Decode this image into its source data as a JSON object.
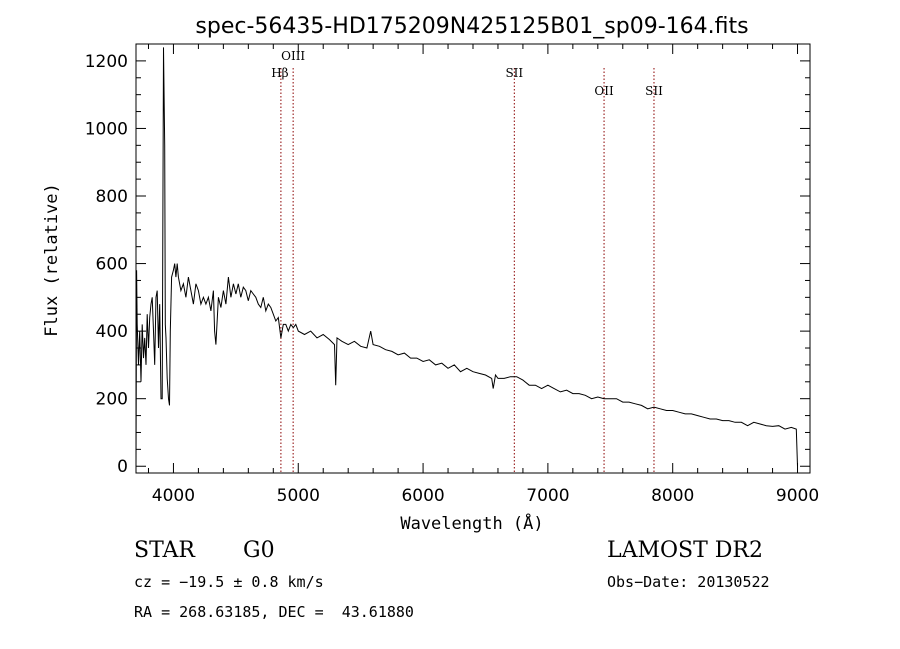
{
  "chart_data": {
    "type": "line",
    "title": "spec-56435-HD175209N425125B01_sp09-164.fits",
    "xlabel": "Wavelength (Å)",
    "ylabel": "Flux (relative)",
    "xlim": [
      3700,
      9100
    ],
    "ylim": [
      -20,
      1250
    ],
    "x_ticks": [
      4000,
      5000,
      6000,
      7000,
      8000,
      9000
    ],
    "y_ticks": [
      0,
      200,
      400,
      600,
      800,
      1000,
      1200
    ],
    "grid": false,
    "line_color": "#000000",
    "marker_color": "#8b0000",
    "lines": [
      {
        "label": "Hβ",
        "wavelength": 4861
      },
      {
        "label": "OIII",
        "wavelength": 4959
      },
      {
        "label": "SII",
        "wavelength": 6731
      },
      {
        "label": "OII",
        "wavelength": 7450
      },
      {
        "label": "SII",
        "wavelength": 7850
      }
    ],
    "series": [
      {
        "x": [
          3700,
          3705,
          3710,
          3720,
          3730,
          3740,
          3750,
          3760,
          3770,
          3780,
          3790,
          3800,
          3810,
          3820,
          3830,
          3840,
          3850,
          3860,
          3870,
          3880,
          3890,
          3900,
          3910,
          3920,
          3930,
          3935,
          3940,
          3950,
          3960,
          3968,
          3975,
          3985,
          4000,
          4010,
          4020,
          4030,
          4040,
          4060,
          4080,
          4100,
          4120,
          4140,
          4160,
          4180,
          4200,
          4220,
          4240,
          4260,
          4280,
          4300,
          4320,
          4330,
          4340,
          4360,
          4380,
          4400,
          4420,
          4440,
          4460,
          4480,
          4500,
          4520,
          4540,
          4560,
          4580,
          4600,
          4620,
          4640,
          4660,
          4680,
          4700,
          4720,
          4740,
          4760,
          4780,
          4800,
          4820,
          4840,
          4861,
          4880,
          4900,
          4920,
          4940,
          4960,
          4980,
          5000,
          5050,
          5100,
          5150,
          5200,
          5250,
          5290,
          5300,
          5310,
          5350,
          5400,
          5450,
          5500,
          5550,
          5580,
          5600,
          5650,
          5700,
          5750,
          5800,
          5850,
          5900,
          5950,
          6000,
          6050,
          6100,
          6150,
          6200,
          6250,
          6300,
          6350,
          6400,
          6450,
          6500,
          6550,
          6562,
          6580,
          6600,
          6650,
          6700,
          6750,
          6800,
          6850,
          6900,
          6950,
          7000,
          7050,
          7100,
          7150,
          7200,
          7250,
          7300,
          7350,
          7400,
          7450,
          7500,
          7550,
          7600,
          7650,
          7700,
          7750,
          7800,
          7850,
          7900,
          7950,
          8000,
          8050,
          8100,
          8150,
          8200,
          8250,
          8300,
          8350,
          8400,
          8450,
          8500,
          8550,
          8600,
          8650,
          8700,
          8750,
          8800,
          8850,
          8900,
          8950,
          8990,
          9000
        ],
        "y": [
          0,
          580,
          420,
          300,
          400,
          250,
          420,
          320,
          380,
          300,
          450,
          350,
          440,
          480,
          500,
          400,
          300,
          500,
          520,
          350,
          480,
          200,
          200,
          1240,
          950,
          420,
          380,
          260,
          200,
          180,
          400,
          560,
          580,
          600,
          560,
          600,
          560,
          520,
          540,
          500,
          560,
          520,
          480,
          540,
          520,
          480,
          500,
          480,
          500,
          460,
          520,
          400,
          360,
          500,
          470,
          520,
          480,
          560,
          500,
          540,
          510,
          540,
          500,
          530,
          520,
          490,
          520,
          510,
          500,
          480,
          470,
          500,
          460,
          480,
          470,
          450,
          430,
          440,
          380,
          420,
          420,
          400,
          420,
          410,
          420,
          400,
          390,
          400,
          380,
          390,
          375,
          360,
          240,
          380,
          370,
          360,
          370,
          355,
          350,
          400,
          360,
          355,
          345,
          340,
          330,
          335,
          320,
          320,
          310,
          315,
          300,
          305,
          290,
          300,
          280,
          290,
          280,
          275,
          270,
          260,
          230,
          270,
          260,
          260,
          265,
          265,
          255,
          240,
          240,
          230,
          240,
          230,
          220,
          225,
          215,
          215,
          210,
          200,
          205,
          200,
          200,
          200,
          190,
          190,
          185,
          180,
          170,
          175,
          170,
          165,
          165,
          160,
          155,
          155,
          150,
          145,
          140,
          140,
          135,
          135,
          130,
          130,
          120,
          130,
          125,
          120,
          118,
          120,
          110,
          115,
          110,
          0
        ]
      }
    ]
  },
  "info": {
    "class_label": "STAR",
    "subclass_label": "G0",
    "survey": "LAMOST DR2",
    "cz": "cz = −19.5 ± 0.8 km/s",
    "obs_date": "Obs−Date: 20130522",
    "radec": "RA = 268.63185, DEC =  43.61880"
  }
}
